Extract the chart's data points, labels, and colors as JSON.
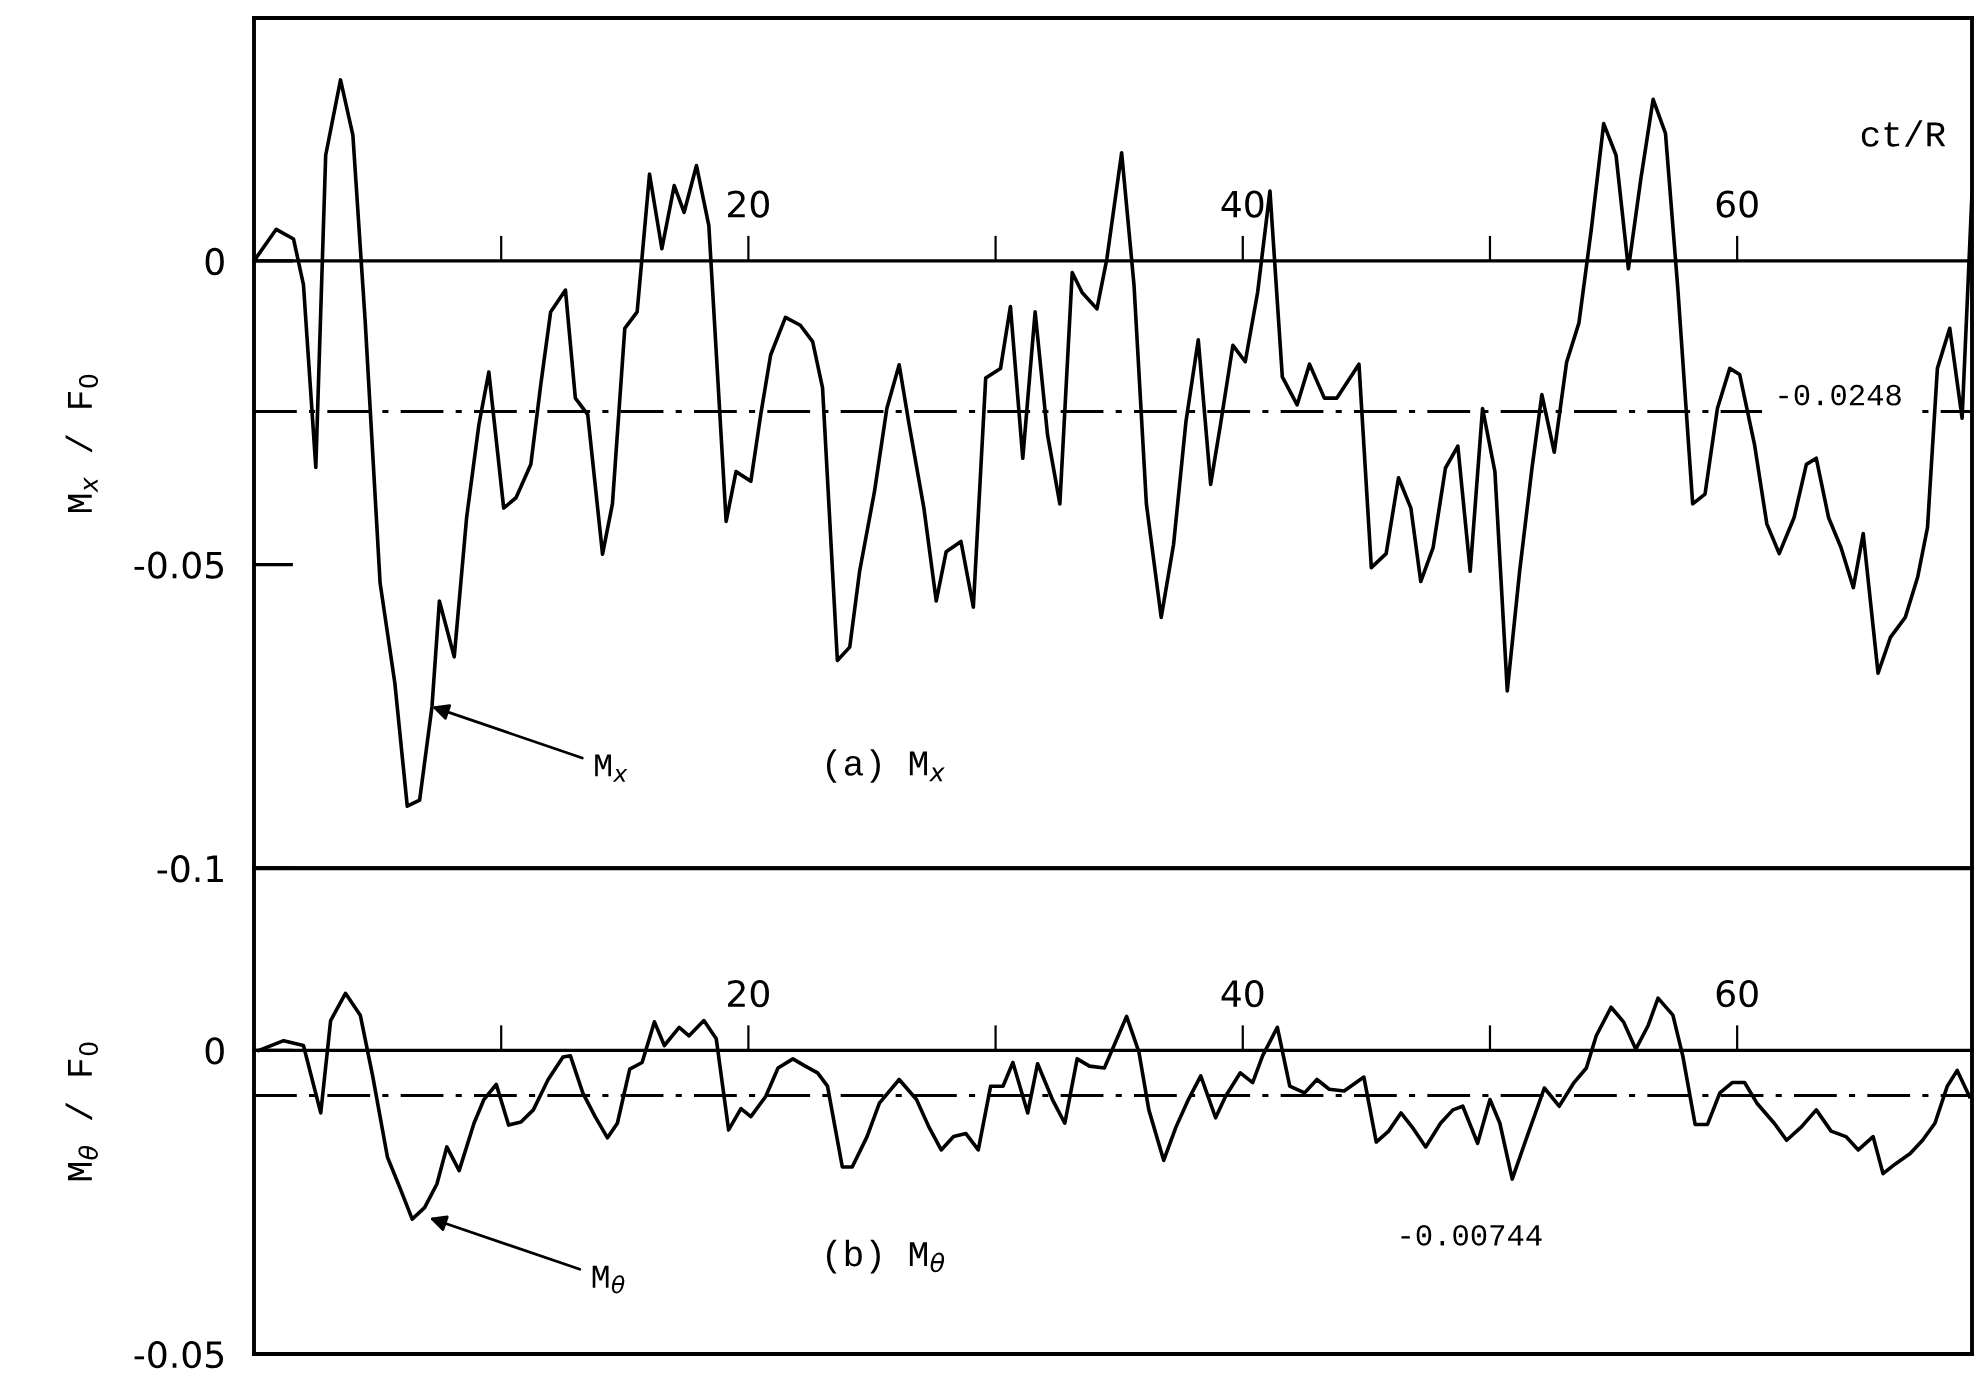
{
  "chart_data": [
    {
      "type": "line",
      "xlabel": "ct/R",
      "ylabel": "M$_{x}$ / F$_{0}$",
      "xlim": [
        0,
        69.5
      ],
      "ylim": [
        -0.1,
        0.04
      ],
      "xticks": [
        {
          "value": 10,
          "label": null
        },
        20,
        {
          "value": 30,
          "label": null
        },
        40,
        {
          "value": 50,
          "label": null
        },
        60
      ],
      "yticks": [
        0,
        -0.05,
        -0.1
      ],
      "grid": false,
      "legend": false,
      "line_style": "solid",
      "ref_lines": [
        {
          "axis": "y",
          "value": -0.0248,
          "label": "-0.0248",
          "line_style": "dashdot"
        }
      ],
      "annotations": [
        {
          "text": "M$_{x}$",
          "x": 7.2,
          "y": -0.0734
        },
        "(a) M$_{x}$"
      ],
      "series": [
        {
          "color": "#000000",
          "x": [
            0,
            0.9,
            1.6,
            2.0,
            2.5,
            2.9,
            3.5,
            4.0,
            4.5,
            5.1,
            5.7,
            6.2,
            6.7,
            7.2,
            7.5,
            8.1,
            8.6,
            9.1,
            9.5,
            10.1,
            10.6,
            11.2,
            11.6,
            12.0,
            12.6,
            13.0,
            13.5,
            14.1,
            14.5,
            15.0,
            15.5,
            16.0,
            16.5,
            17.0,
            17.4,
            17.9,
            18.4,
            19.1,
            19.5,
            20.1,
            20.5,
            20.9,
            21.5,
            22.1,
            22.6,
            23.0,
            23.6,
            24.1,
            24.5,
            25.1,
            25.6,
            26.1,
            26.5,
            27.1,
            27.6,
            28.0,
            28.6,
            29.1,
            29.6,
            30.2,
            30.6,
            31.1,
            31.6,
            32.1,
            32.6,
            33.1,
            33.5,
            34.1,
            34.5,
            35.1,
            35.6,
            36.1,
            36.7,
            37.2,
            37.7,
            38.2,
            38.7,
            39.1,
            39.6,
            40.1,
            40.6,
            41.1,
            41.6,
            42.2,
            42.7,
            43.3,
            43.8,
            44.7,
            45.2,
            45.8,
            46.3,
            46.8,
            47.2,
            47.7,
            48.2,
            48.7,
            49.2,
            49.7,
            50.2,
            50.7,
            51.2,
            51.7,
            52.1,
            52.6,
            53.1,
            53.6,
            54.1,
            54.6,
            55.1,
            55.6,
            56.1,
            56.6,
            57.1,
            57.6,
            58.2,
            58.7,
            59.2,
            59.7,
            60.1,
            60.7,
            61.2,
            61.7,
            62.3,
            62.8,
            63.2,
            63.7,
            64.2,
            64.7,
            65.1,
            65.7,
            66.2,
            66.8,
            67.3,
            67.7,
            68.1,
            68.6,
            69.1,
            69.5
          ],
          "values": [
            0.0,
            0.0052,
            0.0036,
            -0.0039,
            -0.034,
            0.0174,
            0.0298,
            0.0207,
            -0.0101,
            -0.053,
            -0.0696,
            -0.0898,
            -0.0888,
            -0.0734,
            -0.056,
            -0.0652,
            -0.0423,
            -0.0269,
            -0.0183,
            -0.0407,
            -0.039,
            -0.0335,
            -0.0204,
            -0.0084,
            -0.0048,
            -0.0226,
            -0.0253,
            -0.0483,
            -0.04,
            -0.0111,
            -0.0084,
            0.0143,
            0.002,
            0.0124,
            0.008,
            0.0157,
            0.0058,
            -0.0429,
            -0.0347,
            -0.0363,
            -0.0253,
            -0.0155,
            -0.0093,
            -0.0106,
            -0.0133,
            -0.0209,
            -0.0658,
            -0.0636,
            -0.0511,
            -0.038,
            -0.0243,
            -0.0171,
            -0.0269,
            -0.0407,
            -0.056,
            -0.0479,
            -0.0462,
            -0.057,
            -0.0193,
            -0.0177,
            -0.0075,
            -0.0325,
            -0.0084,
            -0.0286,
            -0.04,
            -0.0019,
            -0.0052,
            -0.0079,
            0.0003,
            0.0178,
            -0.004,
            -0.04,
            -0.0587,
            -0.0467,
            -0.0265,
            -0.013,
            -0.0368,
            -0.0269,
            -0.0139,
            -0.0166,
            -0.0052,
            0.0115,
            -0.0191,
            -0.0237,
            -0.017,
            -0.0226,
            -0.0226,
            -0.017,
            -0.0505,
            -0.0482,
            -0.0357,
            -0.0407,
            -0.0528,
            -0.0472,
            -0.0341,
            -0.0305,
            -0.0511,
            -0.0243,
            -0.0347,
            -0.0708,
            -0.0511,
            -0.0341,
            -0.022,
            -0.0315,
            -0.0167,
            -0.0102,
            0.0052,
            0.0226,
            0.0174,
            -0.0013,
            0.0134,
            0.0266,
            0.021,
            -0.0046,
            -0.04,
            -0.0384,
            -0.0243,
            -0.0177,
            -0.0187,
            -0.0302,
            -0.0433,
            -0.0482,
            -0.0423,
            -0.0335,
            -0.0325,
            -0.0423,
            -0.0472,
            -0.0538,
            -0.0449,
            -0.0679,
            -0.062,
            -0.0587,
            -0.0521,
            -0.0439,
            -0.0177,
            -0.0111,
            -0.0259,
            0.0111
          ]
        }
      ]
    },
    {
      "type": "line",
      "ylabel": "M$_{θ}$ / F$_{0}$",
      "xlim": [
        0,
        69.5
      ],
      "ylim": [
        -0.05,
        0.03
      ],
      "xticks": [
        {
          "value": 10,
          "label": null
        },
        20,
        {
          "value": 30,
          "label": null
        },
        40,
        {
          "value": 50,
          "label": null
        },
        60
      ],
      "yticks": [
        0,
        -0.05
      ],
      "grid": false,
      "legend": false,
      "line_style": "solid",
      "ref_lines": [
        {
          "axis": "y",
          "value": -0.00744,
          "label": "-0.00744",
          "line_style": "dashdot"
        }
      ],
      "annotations": [
        {
          "text": "M$_{θ}$",
          "x": 7.1,
          "y": -0.0276
        },
        "(b) M$_{θ}$"
      ],
      "series": [
        {
          "color": "#000000",
          "x": [
            0.2,
            1.2,
            2.0,
            2.7,
            3.1,
            3.7,
            4.3,
            4.8,
            5.4,
            5.9,
            6.4,
            6.9,
            7.4,
            7.8,
            8.3,
            8.9,
            9.3,
            9.8,
            10.3,
            10.8,
            11.3,
            11.9,
            12.5,
            12.8,
            13.3,
            13.8,
            14.3,
            14.7,
            15.2,
            15.7,
            16.2,
            16.6,
            17.2,
            17.6,
            18.2,
            18.7,
            19.2,
            19.7,
            20.1,
            20.7,
            21.2,
            21.8,
            22.3,
            22.8,
            23.2,
            23.8,
            24.2,
            24.8,
            25.3,
            26.1,
            26.8,
            27.3,
            27.8,
            28.3,
            28.8,
            29.3,
            29.8,
            30.3,
            30.7,
            31.3,
            31.7,
            32.3,
            32.8,
            33.3,
            33.8,
            34.4,
            35.3,
            35.8,
            36.2,
            36.8,
            37.3,
            37.8,
            38.3,
            38.9,
            39.3,
            39.9,
            40.4,
            40.8,
            41.4,
            41.9,
            42.5,
            43.0,
            43.5,
            44.1,
            44.9,
            45.4,
            45.9,
            46.4,
            46.9,
            47.4,
            48.0,
            48.5,
            48.9,
            49.5,
            50.0,
            50.4,
            50.9,
            51.5,
            52.2,
            52.8,
            53.4,
            53.9,
            54.3,
            54.9,
            55.4,
            55.9,
            56.4,
            56.8,
            57.4,
            57.8,
            58.3,
            58.8,
            59.3,
            59.8,
            60.3,
            60.8,
            61.5,
            62.0,
            62.6,
            63.2,
            63.8,
            64.4,
            64.9,
            65.5,
            65.9,
            66.4,
            67.0,
            67.5,
            68.0,
            68.5,
            68.9,
            69.4
          ],
          "values": [
            0.0,
            0.0016,
            0.0008,
            -0.0103,
            0.0049,
            0.0094,
            0.0058,
            -0.0042,
            -0.0176,
            -0.0226,
            -0.0278,
            -0.0259,
            -0.022,
            -0.0159,
            -0.0198,
            -0.012,
            -0.0081,
            -0.0056,
            -0.0123,
            -0.0118,
            -0.0098,
            -0.0048,
            -0.0011,
            -0.0009,
            -0.007,
            -0.0109,
            -0.0144,
            -0.012,
            -0.0031,
            -0.002,
            0.0047,
            0.0008,
            0.0038,
            0.0024,
            0.0049,
            0.0019,
            -0.0131,
            -0.0096,
            -0.0109,
            -0.0076,
            -0.0029,
            -0.0014,
            -0.0026,
            -0.0037,
            -0.0059,
            -0.0192,
            -0.0192,
            -0.0142,
            -0.0087,
            -0.0048,
            -0.0081,
            -0.0126,
            -0.0164,
            -0.0142,
            -0.0137,
            -0.0164,
            -0.0059,
            -0.0059,
            -0.002,
            -0.0103,
            -0.0022,
            -0.0081,
            -0.012,
            -0.0014,
            -0.0026,
            -0.0029,
            0.0056,
            -0.0003,
            -0.0098,
            -0.0181,
            -0.0126,
            -0.0081,
            -0.0042,
            -0.0111,
            -0.0076,
            -0.0037,
            -0.0053,
            -0.0009,
            0.0038,
            -0.0059,
            -0.007,
            -0.0048,
            -0.0064,
            -0.0067,
            -0.0044,
            -0.0151,
            -0.0133,
            -0.0103,
            -0.0129,
            -0.0159,
            -0.012,
            -0.0098,
            -0.0092,
            -0.0153,
            -0.0081,
            -0.012,
            -0.0212,
            -0.0142,
            -0.0062,
            -0.0092,
            -0.0053,
            -0.0029,
            0.0024,
            0.0071,
            0.0047,
            0.0002,
            0.0041,
            0.0086,
            0.0058,
            -0.0009,
            -0.0122,
            -0.0122,
            -0.007,
            -0.0053,
            -0.0053,
            -0.0087,
            -0.012,
            -0.0148,
            -0.0126,
            -0.0098,
            -0.0133,
            -0.0142,
            -0.0164,
            -0.0142,
            -0.0203,
            -0.0187,
            -0.017,
            -0.0148,
            -0.012,
            -0.0059,
            -0.0033,
            -0.0076
          ]
        }
      ]
    }
  ]
}
